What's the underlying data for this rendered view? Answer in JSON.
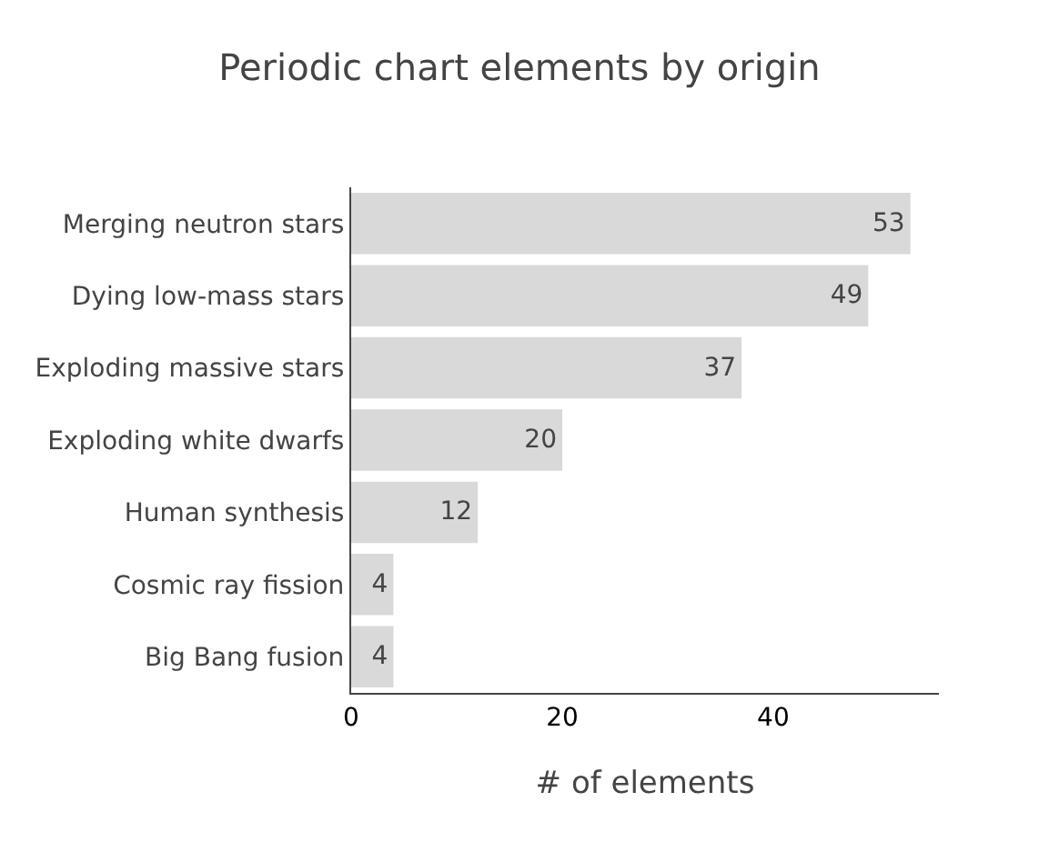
{
  "chart_data": {
    "type": "bar",
    "orientation": "horizontal",
    "title": "Periodic chart elements by origin",
    "xlabel": "# of elements",
    "categories": [
      "Merging neutron stars",
      "Dying low-mass stars",
      "Exploding massive stars",
      "Exploding white dwarfs",
      "Human synthesis",
      "Cosmic ray fission",
      "Big Bang fusion"
    ],
    "values": [
      53,
      49,
      37,
      20,
      12,
      4,
      4
    ],
    "color": "#d9d9d9",
    "xlim": [
      0,
      55.7
    ],
    "xticks": [
      0,
      20,
      40
    ],
    "data_labels": true
  }
}
